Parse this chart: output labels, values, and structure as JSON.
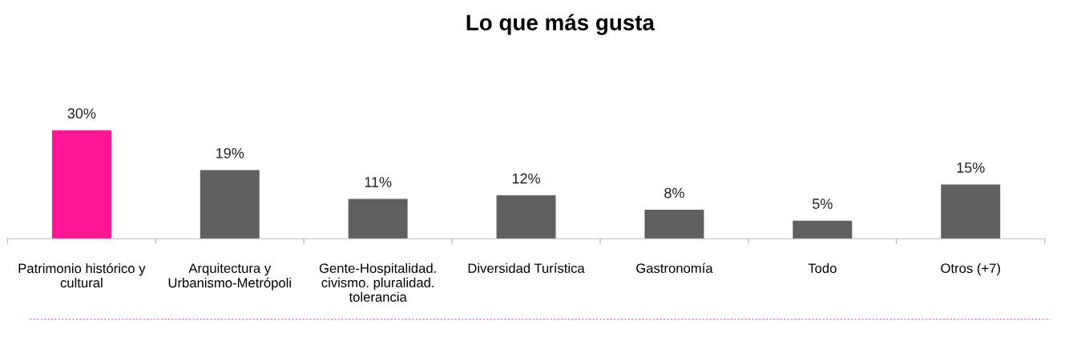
{
  "chart_data": {
    "type": "bar",
    "title": "Lo que más gusta",
    "categories": [
      "Patrimonio histórico y\ncultural",
      "Arquitectura y\nUrbanismo-Metrópoli",
      "Gente-Hospitalidad.\ncivismo. pluralidad.\ntolerancia",
      "Diversidad Turística",
      "Gastronomía",
      "Todo",
      "Otros (+7)"
    ],
    "values": [
      30,
      19,
      11,
      12,
      8,
      5,
      15
    ],
    "value_labels": [
      "30%",
      "19%",
      "11%",
      "12%",
      "8%",
      "5%",
      "15%"
    ],
    "colors": [
      "#ff1493",
      "#5f5f5f",
      "#5f5f5f",
      "#5f5f5f",
      "#5f5f5f",
      "#5f5f5f",
      "#5f5f5f"
    ],
    "grid": false,
    "legend": false
  }
}
